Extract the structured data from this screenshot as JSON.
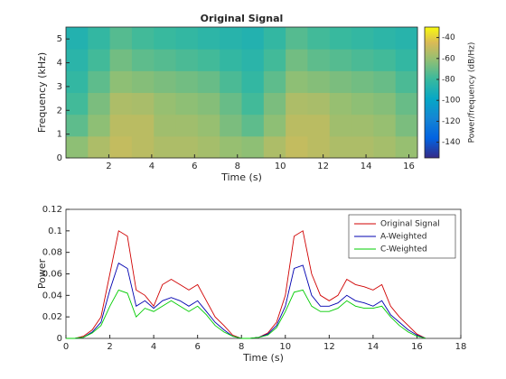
{
  "chart_data": [
    {
      "type": "heatmap",
      "title": "Original Signal",
      "xlabel": "Time (s)",
      "ylabel": "Frequency (kHz)",
      "colorbar_label": "Power/frequency (dB/Hz)",
      "xlim": [
        0,
        16.4
      ],
      "ylim": [
        0,
        5.5
      ],
      "xticks": [
        2,
        4,
        6,
        8,
        10,
        12,
        14,
        16
      ],
      "yticks": [
        0,
        1,
        2,
        3,
        4,
        5
      ],
      "clim": [
        -155,
        -30
      ],
      "cticks": [
        -140,
        -120,
        -100,
        -80,
        -60,
        -40
      ],
      "colormap": "parula",
      "z": [
        [
          -62,
          -55,
          -50,
          -52,
          -55,
          -55,
          -57,
          -60,
          -62,
          -55,
          -50,
          -52,
          -55,
          -55,
          -57,
          -60
        ],
        [
          -72,
          -62,
          -52,
          -52,
          -58,
          -58,
          -60,
          -66,
          -72,
          -62,
          -52,
          -52,
          -58,
          -58,
          -60,
          -66
        ],
        [
          -78,
          -66,
          -55,
          -56,
          -60,
          -62,
          -64,
          -70,
          -78,
          -66,
          -55,
          -56,
          -60,
          -62,
          -64,
          -70
        ],
        [
          -82,
          -72,
          -62,
          -64,
          -66,
          -68,
          -70,
          -76,
          -82,
          -72,
          -62,
          -64,
          -66,
          -68,
          -70,
          -76
        ],
        [
          -85,
          -78,
          -68,
          -72,
          -74,
          -76,
          -78,
          -82,
          -85,
          -78,
          -68,
          -72,
          -74,
          -76,
          -78,
          -82
        ],
        [
          -88,
          -82,
          -74,
          -78,
          -80,
          -82,
          -84,
          -86,
          -88,
          -82,
          -74,
          -78,
          -80,
          -82,
          -84,
          -86
        ]
      ]
    },
    {
      "type": "line",
      "xlabel": "Time (s)",
      "ylabel": "Power",
      "xlim": [
        0,
        18
      ],
      "ylim": [
        0,
        0.12
      ],
      "xticks": [
        0,
        2,
        4,
        6,
        8,
        10,
        12,
        14,
        16,
        18
      ],
      "yticks": [
        0,
        0.02,
        0.04,
        0.06,
        0.08,
        0.1,
        0.12
      ],
      "legend": "upper right",
      "x": [
        0,
        0.4,
        0.8,
        1.2,
        1.6,
        2.0,
        2.4,
        2.8,
        3.2,
        3.6,
        4.0,
        4.4,
        4.8,
        5.2,
        5.6,
        6.0,
        6.4,
        6.8,
        7.2,
        7.6,
        8.0,
        8.4,
        8.8,
        9.2,
        9.6,
        10.0,
        10.4,
        10.8,
        11.2,
        11.6,
        12.0,
        12.4,
        12.8,
        13.2,
        13.6,
        14.0,
        14.4,
        14.8,
        15.2,
        15.6,
        16.0,
        16.4
      ],
      "series": [
        {
          "name": "Original Signal",
          "color": "#d00000",
          "values": [
            0,
            0,
            0.002,
            0.008,
            0.02,
            0.06,
            0.1,
            0.095,
            0.045,
            0.04,
            0.03,
            0.05,
            0.055,
            0.05,
            0.045,
            0.05,
            0.035,
            0.02,
            0.012,
            0.003,
            0,
            0,
            0.001,
            0.005,
            0.015,
            0.04,
            0.095,
            0.1,
            0.06,
            0.04,
            0.035,
            0.04,
            0.055,
            0.05,
            0.048,
            0.045,
            0.05,
            0.03,
            0.02,
            0.012,
            0.004,
            0
          ]
        },
        {
          "name": "A-Weighted",
          "color": "#0000b0",
          "values": [
            0,
            0,
            0.001,
            0.006,
            0.015,
            0.045,
            0.07,
            0.065,
            0.03,
            0.035,
            0.028,
            0.035,
            0.038,
            0.035,
            0.03,
            0.035,
            0.025,
            0.015,
            0.008,
            0.002,
            0,
            0,
            0.001,
            0.004,
            0.012,
            0.03,
            0.065,
            0.068,
            0.04,
            0.03,
            0.03,
            0.033,
            0.04,
            0.035,
            0.033,
            0.03,
            0.035,
            0.022,
            0.015,
            0.008,
            0.003,
            0
          ]
        },
        {
          "name": "C-Weighted",
          "color": "#00cc00",
          "values": [
            0,
            0,
            0.001,
            0.005,
            0.012,
            0.03,
            0.045,
            0.042,
            0.02,
            0.028,
            0.025,
            0.03,
            0.035,
            0.03,
            0.025,
            0.03,
            0.022,
            0.012,
            0.006,
            0.002,
            0,
            0,
            0.001,
            0.003,
            0.01,
            0.025,
            0.043,
            0.045,
            0.03,
            0.025,
            0.025,
            0.028,
            0.035,
            0.03,
            0.028,
            0.028,
            0.03,
            0.02,
            0.012,
            0.006,
            0.002,
            0
          ]
        }
      ]
    }
  ]
}
